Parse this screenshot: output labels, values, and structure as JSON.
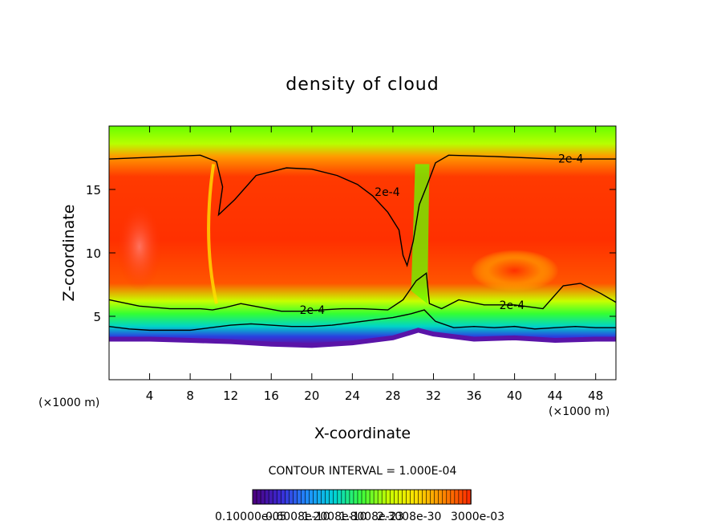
{
  "chart_data": {
    "type": "heatmap",
    "title": "density of cloud",
    "xlabel": "X-coordinate",
    "ylabel": "Z-coordinate",
    "x_unit": "(×1000 m)",
    "x_unit_right": "(×1000 m)",
    "xlim": [
      0,
      50
    ],
    "ylim": [
      0,
      20
    ],
    "x_ticks": [
      4,
      8,
      12,
      16,
      20,
      24,
      28,
      32,
      36,
      40,
      44,
      48
    ],
    "y_ticks": [
      5,
      10,
      15
    ],
    "contour_level_label": "2e-4",
    "contour_interval_text": "CONTOUR INTERVAL = 1.000E-04",
    "colorbar_labels_text": "0.10000e-05",
    "colorbar_labels_text2": "0.6008e-10",
    "colorbar_labels_text3": "1.2008e-10",
    "colorbar_labels_text4": "1.8008e-23",
    "colorbar_labels_text5": "2.3008e-30",
    "colorbar_labels_text6": "3000e-03",
    "colorscale": [
      "#4b0082",
      "#3a2bd8",
      "#1e90ff",
      "#00d4d4",
      "#3cff3c",
      "#c8ff00",
      "#ffe000",
      "#ff8c00",
      "#ff3000"
    ],
    "contour_lines": [
      {
        "label": "2e-4",
        "points": [
          [
            0,
            17.4
          ],
          [
            6,
            17.6
          ],
          [
            9,
            17.7
          ],
          [
            10.6,
            17.2
          ],
          [
            11.2,
            15.2
          ],
          [
            10.8,
            13.0
          ],
          [
            12.4,
            14.2
          ],
          [
            14.5,
            16.1
          ],
          [
            17.5,
            16.7
          ],
          [
            20,
            16.6
          ],
          [
            22.5,
            16.1
          ],
          [
            24.5,
            15.4
          ],
          [
            26,
            14.5
          ],
          [
            27.5,
            13.2
          ],
          [
            28.6,
            11.8
          ],
          [
            29.0,
            9.8
          ],
          [
            29.4,
            9.0
          ],
          [
            30.0,
            10.9
          ],
          [
            30.6,
            13.8
          ],
          [
            31.4,
            15.4
          ],
          [
            32.2,
            17.1
          ],
          [
            33.5,
            17.7
          ],
          [
            38,
            17.6
          ],
          [
            44,
            17.4
          ],
          [
            50,
            17.4
          ]
        ]
      },
      {
        "label": "2e-4",
        "points": [
          [
            0,
            6.3
          ],
          [
            3,
            5.8
          ],
          [
            6,
            5.6
          ],
          [
            9,
            5.6
          ],
          [
            10.2,
            5.5
          ],
          [
            11.5,
            5.7
          ],
          [
            13,
            6.0
          ],
          [
            15,
            5.7
          ],
          [
            17,
            5.4
          ],
          [
            19,
            5.4
          ],
          [
            21,
            5.5
          ],
          [
            23,
            5.6
          ],
          [
            25,
            5.6
          ],
          [
            27.5,
            5.5
          ],
          [
            29,
            6.3
          ],
          [
            30.3,
            7.8
          ],
          [
            31.3,
            8.4
          ],
          [
            31.6,
            6.0
          ],
          [
            32.8,
            5.6
          ],
          [
            34.5,
            6.3
          ],
          [
            37,
            5.9
          ],
          [
            40,
            5.9
          ],
          [
            42.8,
            5.6
          ],
          [
            44.8,
            7.4
          ],
          [
            46.5,
            7.6
          ],
          [
            48.5,
            6.8
          ],
          [
            50,
            6.1
          ]
        ]
      },
      {
        "label": "",
        "points": [
          [
            0,
            4.2
          ],
          [
            2,
            4.0
          ],
          [
            4,
            3.9
          ],
          [
            6,
            3.9
          ],
          [
            8,
            3.9
          ],
          [
            10,
            4.1
          ],
          [
            12,
            4.3
          ],
          [
            14,
            4.4
          ],
          [
            16,
            4.3
          ],
          [
            18,
            4.2
          ],
          [
            20,
            4.2
          ],
          [
            22,
            4.3
          ],
          [
            24,
            4.5
          ],
          [
            26,
            4.7
          ],
          [
            28,
            4.9
          ],
          [
            29.8,
            5.2
          ],
          [
            31.1,
            5.5
          ],
          [
            32.2,
            4.6
          ],
          [
            34,
            4.1
          ],
          [
            36,
            4.2
          ],
          [
            38,
            4.1
          ],
          [
            40,
            4.2
          ],
          [
            42,
            4.0
          ],
          [
            44,
            4.1
          ],
          [
            46,
            4.2
          ],
          [
            48,
            4.1
          ],
          [
            50,
            4.1
          ]
        ]
      }
    ],
    "cloud_base": [
      [
        0,
        3.2
      ],
      [
        4,
        3.2
      ],
      [
        8,
        3.1
      ],
      [
        12,
        3.0
      ],
      [
        16,
        2.8
      ],
      [
        20,
        2.7
      ],
      [
        24,
        2.9
      ],
      [
        28,
        3.3
      ],
      [
        30.5,
        3.9
      ],
      [
        32,
        3.6
      ],
      [
        36,
        3.2
      ],
      [
        40,
        3.3
      ],
      [
        44,
        3.1
      ],
      [
        48,
        3.2
      ],
      [
        50,
        3.2
      ]
    ],
    "grid": false,
    "legend": "colorbar-bottom"
  }
}
